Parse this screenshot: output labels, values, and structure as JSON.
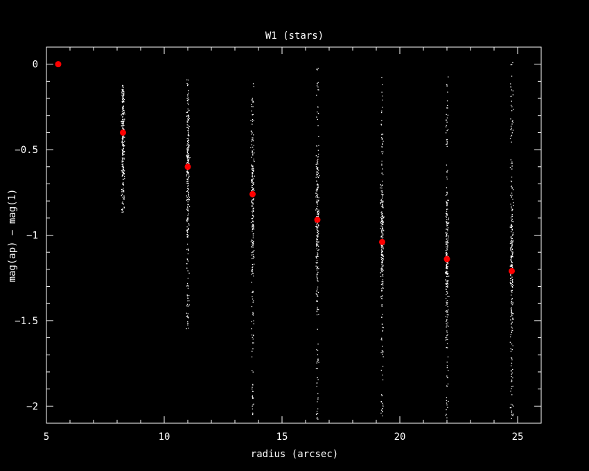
{
  "chart_data": {
    "type": "scatter",
    "title": "W1 (stars)",
    "xlabel": "radius (arcsec)",
    "ylabel": "mag(ap) − mag(1)",
    "xlim": [
      5,
      26
    ],
    "ylim": [
      -2.1,
      0.1
    ],
    "x_ticks": [
      5,
      10,
      15,
      20,
      25
    ],
    "x_tick_labels": [
      "5",
      "10",
      "15",
      "20",
      "25"
    ],
    "y_ticks": [
      0,
      -0.5,
      -1,
      -1.5,
      -2
    ],
    "y_tick_labels": [
      "0",
      "−0.5",
      "−1",
      "−1.5",
      "−2"
    ],
    "grid": false,
    "colors": {
      "background": "#000000",
      "axes": "#ffffff",
      "points": "#ffffff",
      "markers": "#ff0000"
    },
    "series": [
      {
        "marker": "red-dot",
        "x": [
          5.5,
          8.25,
          11.0,
          13.75,
          16.5,
          19.25,
          22.0,
          24.75
        ],
        "y": [
          0.0,
          -0.4,
          -0.6,
          -0.76,
          -0.91,
          -1.04,
          -1.14,
          -1.21
        ]
      }
    ],
    "scatter_columns": [
      {
        "x": 8.25,
        "y_min": -0.87,
        "y_max": -0.12,
        "center": -0.4
      },
      {
        "x": 11.0,
        "y_min": -1.55,
        "y_max": -0.08,
        "center": -0.6
      },
      {
        "x": 13.75,
        "y_min": -2.06,
        "y_max": -0.1,
        "center": -0.76
      },
      {
        "x": 16.5,
        "y_min": -2.08,
        "y_max": -0.01,
        "center": -0.91
      },
      {
        "x": 19.25,
        "y_min": -2.06,
        "y_max": -0.07,
        "center": -1.04
      },
      {
        "x": 22.0,
        "y_min": -2.07,
        "y_max": 0.01,
        "center": -1.14
      },
      {
        "x": 24.75,
        "y_min": -2.08,
        "y_max": 0.02,
        "center": -1.21
      }
    ]
  }
}
